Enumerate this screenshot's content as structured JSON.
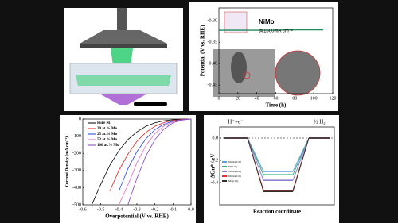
{
  "chart_data": [
    {
      "type": "line",
      "x_label": "Time (h)",
      "y_label": "Potential (V vs. RHE)",
      "annotations": [
        "NiMo",
        "@1500mA cm⁻²"
      ],
      "x": [
        0,
        20,
        40,
        60,
        80,
        100,
        110
      ],
      "series": [
        {
          "name": "NiMo",
          "color": "#1e8a5a",
          "values": [
            -0.322,
            -0.322,
            -0.322,
            -0.322,
            -0.321,
            -0.321,
            -0.321
          ]
        }
      ],
      "xlim": [
        0,
        120
      ],
      "xticks": [
        0,
        20,
        40,
        60,
        80,
        100,
        120
      ],
      "ylim": [
        -0.47,
        -0.27
      ],
      "yticks": [
        {
          "value": -0.45,
          "label": "-0.45"
        },
        {
          "value": -0.4,
          "label": "-0.40"
        },
        {
          "value": -0.35,
          "label": "-0.35"
        },
        {
          "value": -0.3,
          "label": "-0.30"
        }
      ]
    },
    {
      "type": "line",
      "x_label": "Overpotential (V vs. RHE)",
      "y_label": "Current Density (mA cm⁻²)",
      "x": [
        0,
        -0.05,
        -0.1,
        -0.15,
        -0.2,
        -0.25,
        -0.3,
        -0.35,
        -0.4,
        -0.45,
        -0.5,
        -0.55
      ],
      "series": [
        {
          "name": "Pure Ni",
          "color": "#000000",
          "values": [
            0,
            -1,
            -4,
            -10,
            -22,
            -42,
            -75,
            -120,
            -185,
            -270,
            -380,
            -500
          ]
        },
        {
          "name": "20 at.% Mo",
          "color": "#e02020",
          "values": [
            0,
            -2,
            -8,
            -20,
            -42,
            -78,
            -130,
            -205,
            -300,
            -420,
            null,
            null
          ]
        },
        {
          "name": "25 at.% Mo",
          "color": "#2040e0",
          "values": [
            0,
            -3,
            -12,
            -30,
            -62,
            -115,
            -190,
            -290,
            -420,
            null,
            null,
            null
          ]
        },
        {
          "name": "53 at.% Mo",
          "color": "#e070c0",
          "values": [
            0,
            -4,
            -16,
            -40,
            -85,
            -155,
            -255,
            -385,
            -500,
            null,
            null,
            null
          ]
        },
        {
          "name": "100 at.% Mo",
          "color": "#8040c0",
          "values": [
            0,
            -6,
            -22,
            -58,
            -120,
            -215,
            -345,
            -500,
            null,
            null,
            null,
            null
          ]
        }
      ],
      "xlim": [
        -0.6,
        0
      ],
      "xticks": [
        -0.6,
        -0.5,
        -0.4,
        -0.3,
        -0.2,
        -0.1,
        {
          "value": 0,
          "label": "0.0"
        }
      ],
      "ylim": [
        -500,
        0
      ],
      "yticks": [
        -500,
        -400,
        -300,
        -200,
        -100,
        0
      ]
    },
    {
      "type": "energy",
      "x_label": "Reaction coordinate",
      "y_label": "ΔGʜ* / eV",
      "categories": [
        "H⁺+e⁻",
        null,
        "½ H₂"
      ],
      "series": [
        {
          "name": "NiMo(110)",
          "color": "#60a0e0",
          "values": [
            0,
            -0.3,
            0
          ]
        },
        {
          "name": "Ni(111)",
          "color": "#40b080",
          "values": [
            0,
            -0.33,
            0
          ]
        },
        {
          "name": "NiMo(100)",
          "color": "#9080d0",
          "values": [
            0,
            -0.38,
            0
          ]
        },
        {
          "name": "NiMo(111)",
          "color": "#e03030",
          "values": [
            0,
            -0.47,
            0
          ]
        },
        {
          "name": "Mo(110)",
          "color": "#303030",
          "values": [
            0,
            -0.48,
            0
          ]
        }
      ],
      "ylim": [
        -0.6,
        0.1
      ],
      "yticks": [
        {
          "value": -0.4,
          "label": "-0.4"
        },
        {
          "value": -0.2,
          "label": "-0.2"
        },
        {
          "value": 0,
          "label": "0.0"
        }
      ]
    }
  ]
}
